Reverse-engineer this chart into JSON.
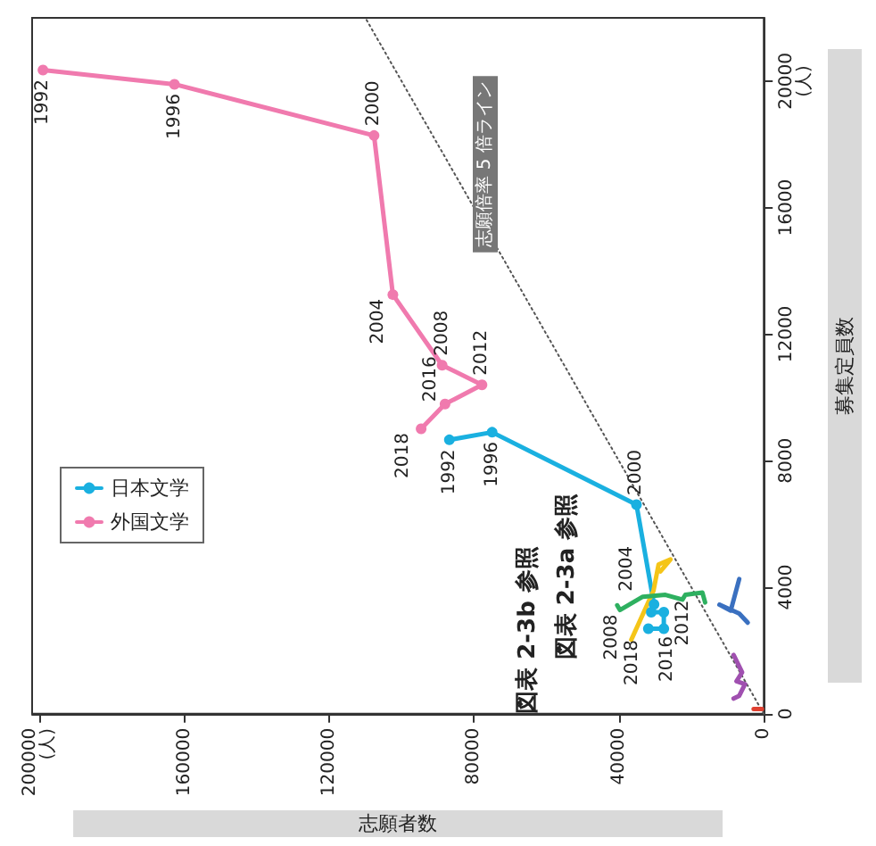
{
  "chart_data": {
    "type": "line",
    "xlabel": "志願者数",
    "ylabel": "募集定員数",
    "xlim": [
      202000,
      0
    ],
    "ylim": [
      0,
      22000
    ],
    "xticks": [
      {
        "value": 200000,
        "label": "200000\n(人)"
      },
      160000,
      120000,
      80000,
      40000,
      0
    ],
    "yticks": [
      0,
      4000,
      8000,
      12000,
      16000,
      {
        "value": 20000,
        "label": "20000\n(人)"
      }
    ],
    "grid": false,
    "legend": "left",
    "series": [
      {
        "name": "日本文学",
        "color": "#1ab0e0",
        "marker": "circle",
        "x": [
          86800,
          75000,
          35150,
          30300,
          31060,
          27600,
          27600,
          31860
        ],
        "values": [
          8660,
          8900,
          6610,
          3460,
          3210,
          3210,
          2690,
          2690
        ]
      },
      {
        "name": "外国文学",
        "color": "#f07aae",
        "marker": "circle",
        "x": [
          199000,
          162700,
          107600,
          102400,
          88800,
          77800,
          88000,
          94600
        ],
        "values": [
          20350,
          19900,
          18280,
          13250,
          11020,
          10400,
          9790,
          9010
        ]
      },
      {
        "color": "#f5c518",
        "marker": "none",
        "x": [
          36570,
          30450,
          29040,
          25740,
          28560
        ],
        "values": [
          2340,
          3890,
          4720,
          4880,
          4500
        ]
      },
      {
        "color": "#2eb060",
        "marker": "none",
        "x": [
          40470,
          39720,
          33410,
          27150,
          22450,
          21650,
          16940,
          16190
        ],
        "values": [
          3430,
          3280,
          3700,
          3760,
          3610,
          3760,
          3830,
          3520
        ]
      },
      {
        "color": "#3a70c0",
        "marker": "none",
        "x": [
          6780,
          9130,
          12240,
          6780,
          4420
        ],
        "values": [
          4260,
          3260,
          3450,
          3170,
          2880
        ]
      },
      {
        "color": "#a050b0",
        "marker": "none",
        "x": [
          8330,
          5980,
          7530,
          5180,
          6780,
          8330
        ],
        "values": [
          1860,
          1310,
          1030,
          940,
          570,
          480
        ]
      },
      {
        "color": "#e04030",
        "marker": "none",
        "x": [
          2800,
          500
        ],
        "values": [
          150,
          150
        ]
      },
      {
        "color": "#555555",
        "marker": "none",
        "line_style": "dotted",
        "x": [
          0,
          110000
        ],
        "values": [
          0,
          22000
        ]
      }
    ],
    "annotations": [
      "志願倍率 5 倍ライン",
      "図表 2-3a 参照",
      "図表 2-3b 参照",
      {
        "text": "1992",
        "x": 86800,
        "y": 8660
      },
      {
        "text": "1996",
        "x": 75000,
        "y": 8900
      },
      {
        "text": "2000",
        "x": 35150,
        "y": 6610
      },
      {
        "text": "2004",
        "x": 30300,
        "y": 3460
      },
      {
        "text": "2008",
        "x": 31060,
        "y": 3210
      },
      {
        "text": "2012",
        "x": 27600,
        "y": 3210
      },
      {
        "text": "2016",
        "x": 27600,
        "y": 2690
      },
      {
        "text": "2018",
        "x": 31860,
        "y": 2690
      },
      {
        "text": "1992",
        "x": 199000,
        "y": 20350
      },
      {
        "text": "1996",
        "x": 162700,
        "y": 19900
      },
      {
        "text": "2000",
        "x": 107600,
        "y": 18280
      },
      {
        "text": "2004",
        "x": 102400,
        "y": 13250
      },
      {
        "text": "2008",
        "x": 88800,
        "y": 11020
      },
      {
        "text": "2012",
        "x": 77800,
        "y": 10400
      },
      {
        "text": "2016",
        "x": 88000,
        "y": 9790
      },
      {
        "text": "2018",
        "x": 94600,
        "y": 9010
      }
    ]
  }
}
